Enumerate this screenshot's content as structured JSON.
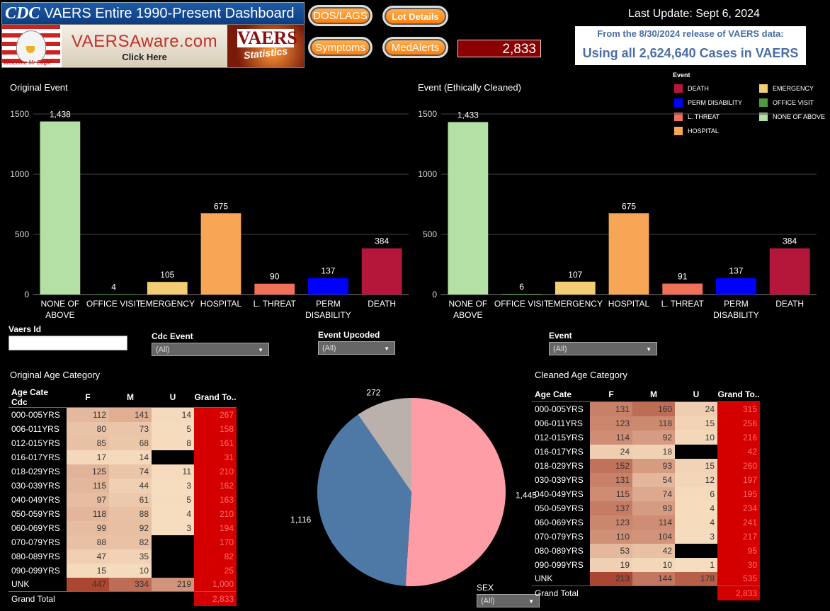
{
  "header": {
    "cdc_logo": "CDC",
    "dashboard_title": "VAERS Entire 1990-Present Dashboard",
    "aware_main": "VAERSAware.com",
    "aware_sub": "Click Here",
    "eagle_caption": "Welcome Mr Eagle",
    "vaers_logo_top": "VAERS",
    "vaers_logo_bottom": "Statistics",
    "buttons": {
      "dos_lags": "DOS/LAGS",
      "lot_details": "Lot Details",
      "symptoms": "Symptoms",
      "medalerts": "MedAlerts"
    },
    "counter": "2,833",
    "last_update": "Last Update: Sept 6, 2024",
    "release_line1": "From the 8/30/2024 release of VAERS data:",
    "release_line2": "Using all 2,624,640 Cases in VAERS"
  },
  "legend": {
    "title": "Event",
    "items": [
      {
        "label": "DEATH",
        "color": "#b5173a"
      },
      {
        "label": "EMERGENCY",
        "color": "#f3cd73"
      },
      {
        "label": "PERM DISABILITY",
        "color": "#0000ff"
      },
      {
        "label": "OFFICE VISIT",
        "color": "#4e9a3e"
      },
      {
        "label": "L. THREAT",
        "color": "#f0705a"
      },
      {
        "label": "NONE OF ABOVE",
        "color": "#b3e0a4"
      },
      {
        "label": "HOSPITAL",
        "color": "#f7a655"
      }
    ]
  },
  "filters": {
    "vaers_id_label": "Vaers Id",
    "vaers_id_value": "",
    "cdc_event_label": "Cdc Event",
    "cdc_event_value": "(All)",
    "event_upcoded_label": "Event Upcoded",
    "event_upcoded_value": "(All)",
    "event_label": "Event",
    "event_value": "(All)",
    "sex_label": "SEX",
    "sex_value": "(All)"
  },
  "chart_data": [
    {
      "type": "bar",
      "title": "Original Event",
      "categories": [
        "NONE OF ABOVE",
        "OFFICE VISIT",
        "EMERGENCY",
        "HOSPITAL",
        "L. THREAT",
        "PERM DISABILITY",
        "DEATH"
      ],
      "category_lines": [
        [
          "NONE OF",
          "ABOVE"
        ],
        [
          "OFFICE VISIT"
        ],
        [
          "EMERGENCY"
        ],
        [
          "HOSPITAL"
        ],
        [
          "L. THREAT"
        ],
        [
          "PERM",
          "DISABILITY"
        ],
        [
          "DEATH"
        ]
      ],
      "colors": [
        "#b3e0a4",
        "#4e9a3e",
        "#f3cd73",
        "#f7a655",
        "#f0705a",
        "#0000ff",
        "#b5173a"
      ],
      "values": [
        1438,
        4,
        105,
        675,
        90,
        137,
        384
      ],
      "labels": [
        "1,438",
        "4",
        "105",
        "675",
        "90",
        "137",
        "384"
      ],
      "yticks": [
        0,
        500,
        1000,
        1500
      ],
      "ylim": [
        0,
        1600
      ]
    },
    {
      "type": "bar",
      "title": "Event (Ethically Cleaned)",
      "categories": [
        "NONE OF ABOVE",
        "OFFICE VISIT",
        "EMERGENCY",
        "HOSPITAL",
        "L. THREAT",
        "PERM DISABILITY",
        "DEATH"
      ],
      "category_lines": [
        [
          "NONE OF",
          "ABOVE"
        ],
        [
          "OFFICE VISIT"
        ],
        [
          "EMERGENCY"
        ],
        [
          "HOSPITAL"
        ],
        [
          "L. THREAT"
        ],
        [
          "PERM",
          "DISABILITY"
        ],
        [
          "DEATH"
        ]
      ],
      "colors": [
        "#b3e0a4",
        "#4e9a3e",
        "#f3cd73",
        "#f7a655",
        "#f0705a",
        "#0000ff",
        "#b5173a"
      ],
      "values": [
        1433,
        6,
        107,
        675,
        91,
        137,
        384
      ],
      "labels": [
        "1,433",
        "6",
        "107",
        "675",
        "91",
        "137",
        "384"
      ],
      "yticks": [
        0,
        500,
        1000,
        1500
      ],
      "ylim": [
        0,
        1600
      ]
    },
    {
      "type": "pie",
      "slices": [
        {
          "value": 1445,
          "label": "1,445",
          "color": "#ff9da7"
        },
        {
          "value": 1116,
          "label": "1,116",
          "color": "#4e79a7"
        },
        {
          "value": 272,
          "label": "272",
          "color": "#bab0ac"
        }
      ]
    },
    {
      "type": "table",
      "title": "Original Age Category",
      "columns": [
        "Age Cate Cdc",
        "F",
        "M",
        "U",
        "Grand To.."
      ],
      "rows": [
        [
          "000-005YRS",
          "112",
          "141",
          "14",
          "267"
        ],
        [
          "006-011YRS",
          "80",
          "73",
          "5",
          "158"
        ],
        [
          "012-015YRS",
          "85",
          "68",
          "8",
          "161"
        ],
        [
          "016-017YRS",
          "17",
          "14",
          "",
          "31"
        ],
        [
          "018-029YRS",
          "125",
          "74",
          "11",
          "210"
        ],
        [
          "030-039YRS",
          "115",
          "44",
          "3",
          "162"
        ],
        [
          "040-049YRS",
          "97",
          "61",
          "5",
          "163"
        ],
        [
          "050-059YRS",
          "118",
          "88",
          "4",
          "210"
        ],
        [
          "060-069YRS",
          "99",
          "92",
          "3",
          "194"
        ],
        [
          "070-079YRS",
          "88",
          "82",
          "",
          "170"
        ],
        [
          "080-089YRS",
          "47",
          "35",
          "",
          "82"
        ],
        [
          "090-099YRS",
          "15",
          "10",
          "",
          "25"
        ],
        [
          "UNK",
          "447",
          "334",
          "219",
          "1,000"
        ]
      ],
      "total": [
        "Grand Total",
        "",
        "",
        "",
        "2,833"
      ]
    },
    {
      "type": "table",
      "title": "Cleaned Age Category",
      "columns": [
        "Age Cate",
        "F",
        "M",
        "U",
        "Grand To.."
      ],
      "rows": [
        [
          "000-005YRS",
          "131",
          "160",
          "24",
          "315"
        ],
        [
          "006-011YRS",
          "123",
          "118",
          "15",
          "256"
        ],
        [
          "012-015YRS",
          "114",
          "92",
          "10",
          "216"
        ],
        [
          "016-017YRS",
          "24",
          "18",
          "",
          "42"
        ],
        [
          "018-029YRS",
          "152",
          "93",
          "15",
          "260"
        ],
        [
          "030-039YRS",
          "131",
          "54",
          "12",
          "197"
        ],
        [
          "040-049YRS",
          "115",
          "74",
          "6",
          "195"
        ],
        [
          "050-059YRS",
          "137",
          "93",
          "4",
          "234"
        ],
        [
          "060-069YRS",
          "123",
          "114",
          "4",
          "241"
        ],
        [
          "070-079YRS",
          "110",
          "104",
          "3",
          "217"
        ],
        [
          "080-089YRS",
          "53",
          "42",
          "",
          "95"
        ],
        [
          "090-099YRS",
          "19",
          "10",
          "1",
          "30"
        ],
        [
          "UNK",
          "213",
          "144",
          "178",
          "535"
        ]
      ],
      "total": [
        "Grand Total",
        "",
        "",
        "",
        "2,833"
      ]
    }
  ]
}
